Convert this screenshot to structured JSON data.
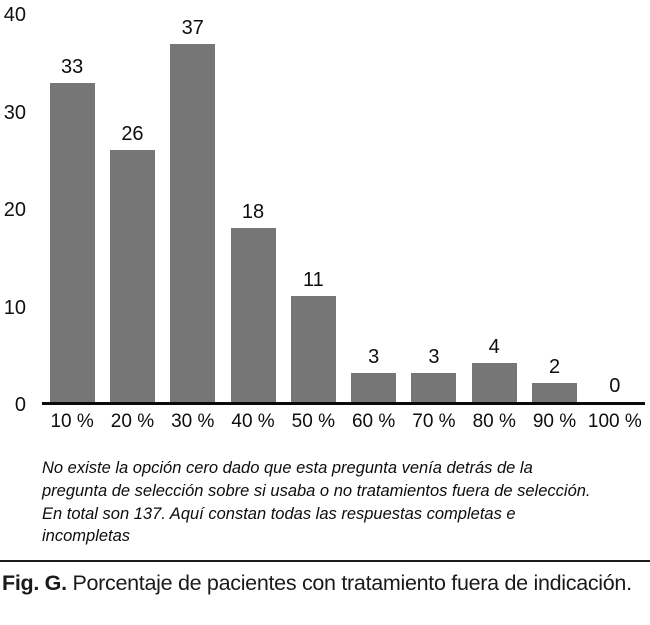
{
  "chart_data": {
    "type": "bar",
    "categories": [
      "10 %",
      "20 %",
      "30 %",
      "40 %",
      "50 %",
      "60 %",
      "70 %",
      "80 %",
      "90 %",
      "100 %"
    ],
    "values": [
      33,
      26,
      37,
      18,
      11,
      3,
      3,
      4,
      2,
      0
    ],
    "title": "",
    "xlabel": "",
    "ylabel": "",
    "ylim": [
      0,
      40
    ],
    "yticks": [
      0,
      10,
      20,
      30,
      40
    ],
    "bar_color": "#767676",
    "axis_color": "#0a0a0a",
    "grid": false,
    "legend": "none",
    "value_labels": true
  },
  "note": "No existe la opción cero dado que esta pregunta venía detrás de la\npregunta de selección sobre si usaba o no tratamientos fuera de selección.\nEn total son 137. Aquí constan todas las respuestas completas e\nincompletas",
  "caption": {
    "label": "Fig. G.",
    "text": "Porcentaje de pacientes con tratamiento fuera de indicación."
  }
}
